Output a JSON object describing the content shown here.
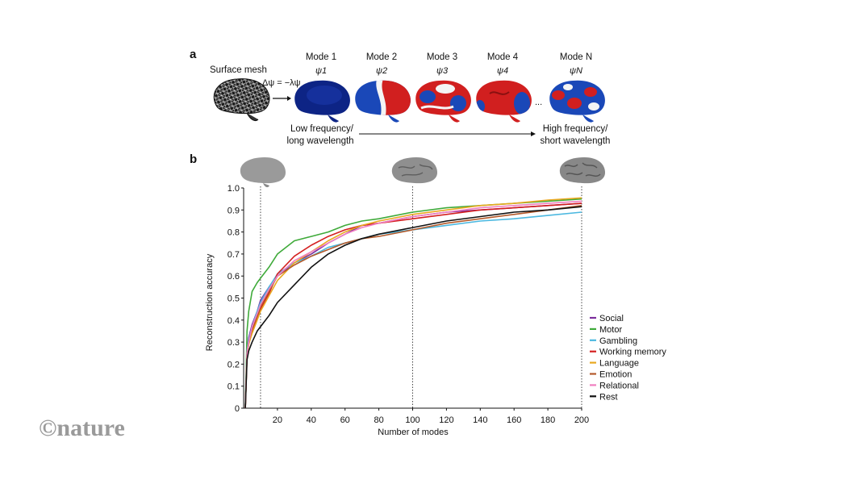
{
  "watermark": "©nature",
  "panel_a": {
    "label": "a",
    "surface_mesh": "Surface mesh",
    "equation": "Δψ = −λψ",
    "modes": [
      {
        "label": "Mode 1",
        "psi": "ψ1",
        "colors": [
          "#0d2485",
          "#0d2485",
          "#0d2485"
        ]
      },
      {
        "label": "Mode 2",
        "psi": "ψ2",
        "colors": [
          "#1a48b8",
          "#f4f4f4",
          "#d11f1f"
        ]
      },
      {
        "label": "Mode 3",
        "psi": "ψ3",
        "colors": [
          "#d11f1f",
          "#f4f4f4",
          "#1a48b8"
        ]
      },
      {
        "label": "Mode 4",
        "psi": "ψ4",
        "colors": [
          "#d11f1f",
          "#d11f1f",
          "#1a48b8"
        ]
      },
      {
        "label": "Mode N",
        "psi": "ψN",
        "colors": [
          "#1a48b8",
          "#d11f1f",
          "#f4f4f4"
        ]
      }
    ],
    "ellipsis": "...",
    "low_freq_line1": "Low frequency/",
    "low_freq_line2": "long wavelength",
    "high_freq_line1": "High frequency/",
    "high_freq_line2": "short wavelength"
  },
  "panel_b": {
    "label": "b"
  },
  "chart_data": {
    "type": "line",
    "xlabel": "Number of modes",
    "ylabel": "Reconstruction accuracy",
    "xlim": [
      0,
      200
    ],
    "ylim": [
      0,
      1.0
    ],
    "xticks": [
      20,
      40,
      60,
      80,
      100,
      120,
      140,
      160,
      180,
      200
    ],
    "yticks": [
      0,
      0.1,
      0.2,
      0.3,
      0.4,
      0.5,
      0.6,
      0.7,
      0.8,
      0.9,
      1.0
    ],
    "vlines": [
      10,
      100,
      200
    ],
    "grid": false,
    "legend_position": "right",
    "x": [
      1,
      2,
      3,
      5,
      8,
      10,
      15,
      20,
      30,
      40,
      50,
      60,
      70,
      80,
      100,
      120,
      140,
      160,
      180,
      200
    ],
    "series": [
      {
        "name": "Social",
        "color": "#7b2d9c",
        "values": [
          0.0,
          0.27,
          0.32,
          0.38,
          0.44,
          0.49,
          0.55,
          0.6,
          0.66,
          0.7,
          0.75,
          0.79,
          0.83,
          0.84,
          0.87,
          0.89,
          0.9,
          0.91,
          0.92,
          0.93
        ]
      },
      {
        "name": "Motor",
        "color": "#3faa3a",
        "values": [
          0.0,
          0.35,
          0.44,
          0.53,
          0.57,
          0.59,
          0.64,
          0.7,
          0.76,
          0.78,
          0.8,
          0.83,
          0.85,
          0.86,
          0.89,
          0.91,
          0.92,
          0.93,
          0.94,
          0.95
        ]
      },
      {
        "name": "Gambling",
        "color": "#4bb8e0",
        "values": [
          0.0,
          0.26,
          0.31,
          0.37,
          0.44,
          0.48,
          0.55,
          0.61,
          0.66,
          0.69,
          0.73,
          0.75,
          0.77,
          0.79,
          0.81,
          0.83,
          0.85,
          0.86,
          0.875,
          0.89
        ]
      },
      {
        "name": "Working memory",
        "color": "#d42020",
        "values": [
          0.0,
          0.24,
          0.29,
          0.35,
          0.41,
          0.45,
          0.52,
          0.61,
          0.69,
          0.74,
          0.78,
          0.81,
          0.83,
          0.84,
          0.86,
          0.88,
          0.9,
          0.91,
          0.92,
          0.93
        ]
      },
      {
        "name": "Language",
        "color": "#e9a820",
        "values": [
          0.0,
          0.24,
          0.29,
          0.34,
          0.4,
          0.44,
          0.51,
          0.58,
          0.66,
          0.71,
          0.76,
          0.8,
          0.83,
          0.85,
          0.88,
          0.9,
          0.92,
          0.93,
          0.945,
          0.955
        ]
      },
      {
        "name": "Emotion",
        "color": "#b45a2b",
        "values": [
          0.0,
          0.25,
          0.3,
          0.36,
          0.42,
          0.46,
          0.53,
          0.6,
          0.65,
          0.69,
          0.72,
          0.75,
          0.77,
          0.78,
          0.81,
          0.84,
          0.86,
          0.88,
          0.9,
          0.92
        ]
      },
      {
        "name": "Relational",
        "color": "#f07fc0",
        "values": [
          0.0,
          0.25,
          0.3,
          0.37,
          0.43,
          0.47,
          0.54,
          0.6,
          0.67,
          0.71,
          0.75,
          0.79,
          0.82,
          0.84,
          0.87,
          0.89,
          0.91,
          0.92,
          0.93,
          0.94
        ]
      },
      {
        "name": "Rest",
        "color": "#111111",
        "values": [
          0.0,
          0.22,
          0.26,
          0.3,
          0.35,
          0.37,
          0.42,
          0.48,
          0.56,
          0.64,
          0.7,
          0.74,
          0.77,
          0.79,
          0.82,
          0.85,
          0.87,
          0.89,
          0.9,
          0.915
        ]
      }
    ]
  }
}
